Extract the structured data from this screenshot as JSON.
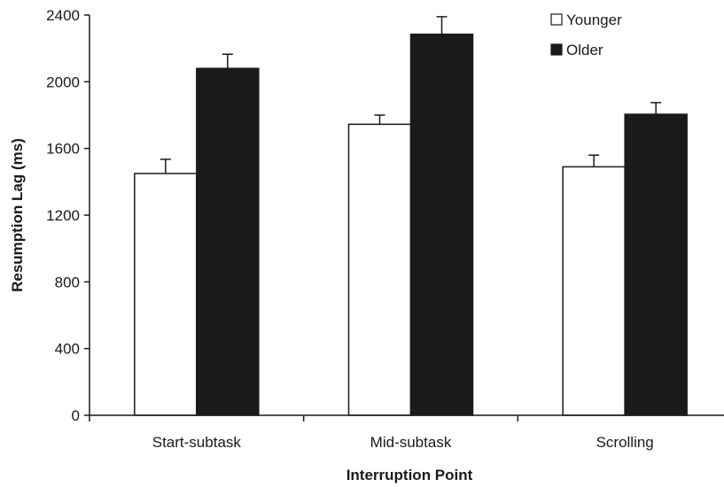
{
  "chart_data": {
    "type": "bar",
    "categories": [
      "Start-subtask",
      "Mid-subtask",
      "Scrolling"
    ],
    "series": [
      {
        "name": "Younger",
        "values": [
          1450,
          1745,
          1490
        ],
        "error": [
          85,
          55,
          70
        ],
        "color": "#ffffff"
      },
      {
        "name": "Older",
        "values": [
          2080,
          2285,
          1805
        ],
        "error": [
          85,
          105,
          70
        ],
        "color": "#1a1a1a"
      }
    ],
    "xlabel": "Interruption Point",
    "ylabel": "Resumption Lag (ms)",
    "ylim": [
      0,
      2400
    ],
    "yticks": [
      0,
      400,
      800,
      1200,
      1600,
      2000,
      2400
    ],
    "grid": false,
    "legend_position": "top-right"
  }
}
